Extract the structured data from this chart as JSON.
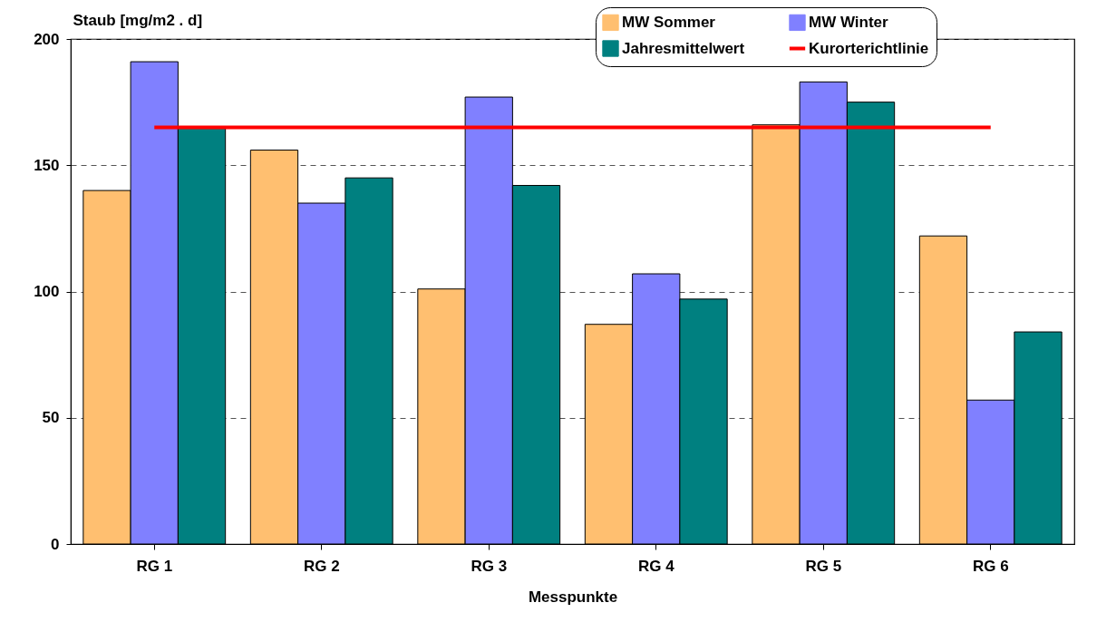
{
  "chart_data": {
    "type": "bar",
    "xlabel": "Messpunkte",
    "ylabel": "Staub [mg/m2 . d]",
    "categories": [
      "RG 1",
      "RG 2",
      "RG 3",
      "RG 4",
      "RG 5",
      "RG 6"
    ],
    "series": [
      {
        "name": "MW Sommer",
        "color": "#ffbf70",
        "values": [
          140,
          156,
          101,
          87,
          166,
          122
        ]
      },
      {
        "name": "MW Winter",
        "color": "#8080ff",
        "values": [
          191,
          135,
          177,
          107,
          183,
          57
        ]
      },
      {
        "name": "Jahresmittelwert",
        "color": "#008080",
        "values": [
          165,
          145,
          142,
          97,
          175,
          84
        ]
      },
      {
        "name": "Kurorterichtlinie",
        "type": "line",
        "color": "#ff0000",
        "values": [
          165,
          165,
          165,
          165,
          165,
          165
        ]
      }
    ],
    "ylim": [
      0,
      200
    ],
    "yticks": [
      0,
      50,
      100,
      150,
      200
    ],
    "grid": "y",
    "legend": "top right"
  }
}
